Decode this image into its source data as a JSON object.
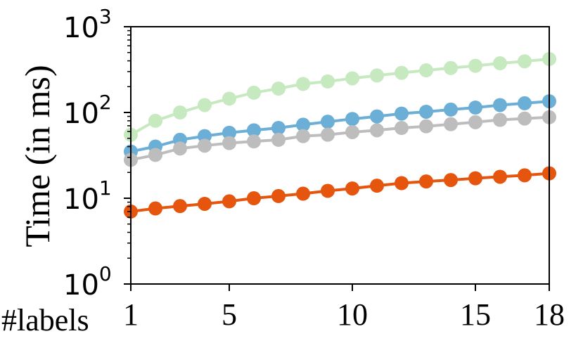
{
  "chart_data": {
    "type": "line",
    "title": "",
    "xlabel": "#labels",
    "ylabel": "Time (in ms)",
    "yscale": "log",
    "xlim": [
      1,
      18
    ],
    "ylim": [
      1,
      1000
    ],
    "x_ticks": [
      1,
      5,
      10,
      15,
      18
    ],
    "y_ticks": [
      {
        "value": 1,
        "base": "10",
        "exp": "0"
      },
      {
        "value": 10,
        "base": "10",
        "exp": "1"
      },
      {
        "value": 100,
        "base": "10",
        "exp": "2"
      },
      {
        "value": 1000,
        "base": "10",
        "exp": "3"
      }
    ],
    "grid": false,
    "x": [
      1,
      2,
      3,
      4,
      5,
      6,
      7,
      8,
      9,
      10,
      11,
      12,
      13,
      14,
      15,
      16,
      17,
      18
    ],
    "series": [
      {
        "color": "#c7e9c0",
        "values": [
          55,
          80,
          100,
          122,
          145,
          170,
          190,
          215,
          230,
          250,
          270,
          290,
          310,
          330,
          350,
          375,
          395,
          420
        ]
      },
      {
        "color": "#6baed6",
        "values": [
          35,
          40,
          48,
          53,
          58,
          62,
          66,
          72,
          78,
          84,
          90,
          97,
          102,
          108,
          114,
          122,
          128,
          135
        ]
      },
      {
        "color": "#bdbdbd",
        "values": [
          28,
          32,
          38,
          41,
          44,
          46,
          48,
          53,
          55,
          59,
          62,
          66,
          69,
          73,
          77,
          82,
          85,
          88
        ]
      },
      {
        "color": "#e6550d",
        "values": [
          7,
          7.6,
          8.1,
          8.6,
          9.2,
          10,
          10.6,
          11.3,
          12.2,
          13,
          14,
          15,
          15.7,
          16.3,
          17.1,
          17.8,
          18.5,
          19.5
        ]
      }
    ]
  }
}
